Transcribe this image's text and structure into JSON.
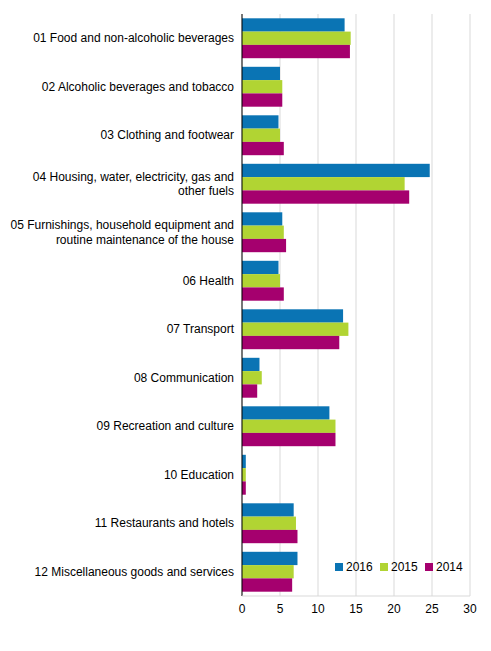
{
  "chart_data": {
    "type": "bar",
    "orientation": "horizontal",
    "categories": [
      "01 Food and non-alcoholic beverages",
      "02 Alcoholic beverages and tobacco",
      "03 Clothing and footwear",
      "04 Housing, water, electricity, gas and other fuels",
      "05 Furnishings, household equipment and routine maintenance of the house",
      "06 Health",
      "07 Transport",
      "08 Communication",
      "09 Recreation and culture",
      "10 Education",
      "11 Restaurants and hotels",
      "12 Miscellaneous goods and services"
    ],
    "series": [
      {
        "name": "2016",
        "color": "#0a74b4",
        "values": [
          13.5,
          5.0,
          4.8,
          24.7,
          5.3,
          4.8,
          13.3,
          2.3,
          11.5,
          0.5,
          6.8,
          7.3
        ]
      },
      {
        "name": "2015",
        "color": "#b1d433",
        "values": [
          14.3,
          5.3,
          5.0,
          21.4,
          5.5,
          5.0,
          14.0,
          2.6,
          12.3,
          0.5,
          7.1,
          6.8
        ]
      },
      {
        "name": "2014",
        "color": "#a5006e",
        "values": [
          14.2,
          5.3,
          5.5,
          22.0,
          5.8,
          5.5,
          12.8,
          2.0,
          12.3,
          0.5,
          7.3,
          6.6
        ]
      }
    ],
    "xlim": [
      0,
      30
    ],
    "xticks": [
      0,
      5,
      10,
      15,
      20,
      25,
      30
    ],
    "grid": true,
    "legend": "lower right"
  }
}
